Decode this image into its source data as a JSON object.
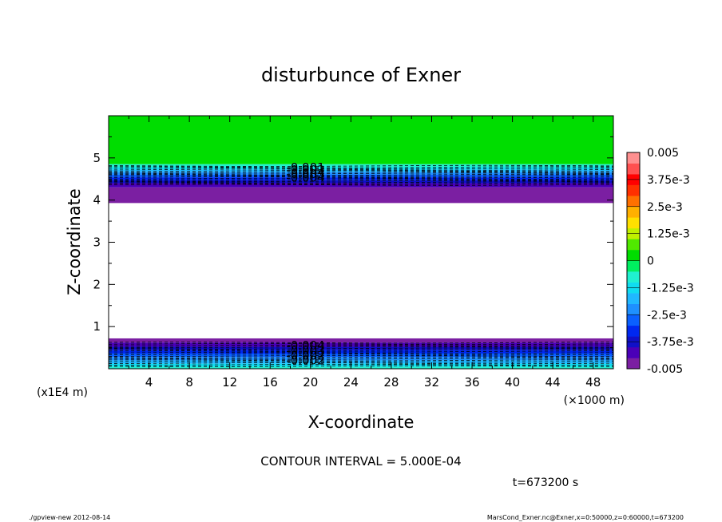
{
  "chart_data": {
    "type": "heatmap",
    "title": "disturbunce of Exner",
    "xlabel": "X-coordinate",
    "ylabel": "Z-coordinate",
    "x_unit": "(×1000 m)",
    "y_unit": "(x1E4 m)",
    "xlim": [
      0,
      50
    ],
    "ylim": [
      0,
      6
    ],
    "x_ticks": [
      "4",
      "8",
      "12",
      "16",
      "20",
      "24",
      "28",
      "32",
      "36",
      "40",
      "44",
      "48"
    ],
    "y_ticks": [
      "1",
      "2",
      "3",
      "4",
      "5"
    ],
    "x_tick_values": [
      4,
      8,
      12,
      16,
      20,
      24,
      28,
      32,
      36,
      40,
      44,
      48
    ],
    "y_tick_values": [
      1,
      2,
      3,
      4,
      5
    ],
    "bands": [
      {
        "z0": 4.85,
        "z1": 6.0,
        "level": 0.0005
      },
      {
        "z0": 4.78,
        "z1": 4.85,
        "level": -0.00075
      },
      {
        "z0": 4.72,
        "z1": 4.78,
        "level": -0.00125
      },
      {
        "z0": 4.66,
        "z1": 4.72,
        "level": -0.00175
      },
      {
        "z0": 4.6,
        "z1": 4.66,
        "level": -0.00225
      },
      {
        "z0": 4.54,
        "z1": 4.6,
        "level": -0.00275
      },
      {
        "z0": 4.47,
        "z1": 4.54,
        "level": -0.00325
      },
      {
        "z0": 4.4,
        "z1": 4.47,
        "level": -0.00375
      },
      {
        "z0": 4.3,
        "z1": 4.4,
        "level": -0.00425
      },
      {
        "z0": 3.93,
        "z1": 4.3,
        "level": -0.00475
      },
      {
        "z0": 0.62,
        "z1": 0.72,
        "level": -0.00475
      },
      {
        "z0": 0.52,
        "z1": 0.62,
        "level": -0.00425
      },
      {
        "z0": 0.44,
        "z1": 0.52,
        "level": -0.00375
      },
      {
        "z0": 0.36,
        "z1": 0.44,
        "level": -0.00325
      },
      {
        "z0": 0.28,
        "z1": 0.36,
        "level": -0.00275
      },
      {
        "z0": 0.2,
        "z1": 0.28,
        "level": -0.00225
      },
      {
        "z0": 0.12,
        "z1": 0.2,
        "level": -0.00175
      },
      {
        "z0": 0.05,
        "z1": 0.12,
        "level": -0.00125
      },
      {
        "z0": 0.0,
        "z1": 0.05,
        "level": -0.00075
      }
    ],
    "contour_labels": [
      {
        "x": 19.5,
        "z": 4.77,
        "text": "-0.001"
      },
      {
        "x": 19.5,
        "z": 4.71,
        "text": "-0.002"
      },
      {
        "x": 19.5,
        "z": 4.62,
        "text": "-0.003"
      },
      {
        "x": 19.5,
        "z": 4.53,
        "text": "-0.004"
      },
      {
        "x": 19.5,
        "z": 0.55,
        "text": "-0.004"
      },
      {
        "x": 19.5,
        "z": 0.43,
        "text": "-0.003"
      },
      {
        "x": 19.5,
        "z": 0.31,
        "text": "-0.002"
      },
      {
        "x": 19.5,
        "z": 0.2,
        "text": "-0.002"
      }
    ],
    "colorbar": {
      "range": [
        -0.005,
        0.005
      ],
      "labels": [
        "0.005",
        "3.75e-3",
        "2.5e-3",
        "1.25e-3",
        "0",
        "-1.25e-3",
        "-2.5e-3",
        "-3.75e-3",
        "-0.005"
      ],
      "label_values": [
        0.005,
        0.00375,
        0.0025,
        0.00125,
        0,
        -0.00125,
        -0.0025,
        -0.00375,
        -0.005
      ],
      "colors": [
        "#7b1fa2",
        "#4a00b8",
        "#1010c8",
        "#0028f0",
        "#0a60ff",
        "#1e90ff",
        "#20b8ff",
        "#10dcf0",
        "#20f0d0",
        "#00ee60",
        "#00dd00",
        "#50e800",
        "#c0f000",
        "#ffe000",
        "#ffb000",
        "#ff7000",
        "#ff3000",
        "#ff0000",
        "#ff5050",
        "#ff9090"
      ]
    }
  },
  "annotations": {
    "contour_interval": "CONTOUR INTERVAL = 5.000E-04",
    "time": "t=673200 s",
    "footer_left": "./gpview-new  2012-08-14",
    "footer_right": "MarsCond_Exner.nc@Exner,x=0:50000,z=0:60000,t=673200"
  }
}
